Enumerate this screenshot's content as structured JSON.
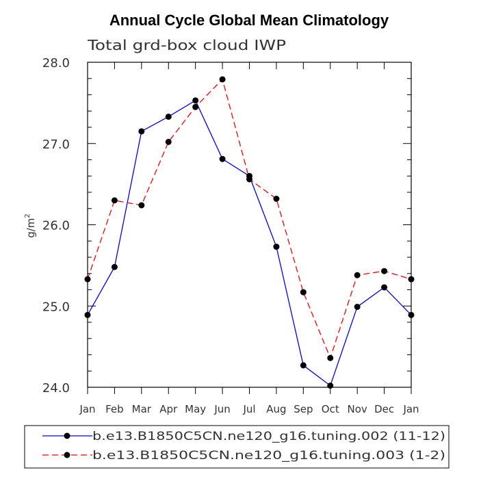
{
  "chart_data": {
    "type": "line",
    "title": "Annual Cycle Global Mean Climatology",
    "subtitle": "Total grd-box cloud IWP",
    "ylabel": "g/m",
    "ylabel_superscript": "2",
    "xlabel": "",
    "categories": [
      "Jan",
      "Feb",
      "Mar",
      "Apr",
      "May",
      "Jun",
      "Jul",
      "Aug",
      "Sep",
      "Oct",
      "Nov",
      "Dec",
      "Jan"
    ],
    "ylim": [
      24.0,
      28.0
    ],
    "yticks": [
      "24.0",
      "25.0",
      "26.0",
      "27.0",
      "28.0"
    ],
    "series": [
      {
        "name": "b.e13.B1850C5CN.ne120_g16.tuning.002 (11-12)",
        "color": "#0000ff",
        "dash": "solid",
        "values": [
          24.89,
          25.48,
          27.15,
          27.33,
          27.53,
          26.81,
          26.6,
          25.73,
          24.27,
          24.02,
          24.99,
          25.23,
          24.89
        ]
      },
      {
        "name": "b.e13.B1850C5CN.ne120_g16.tuning.003 (1-2)",
        "color": "#ff0000",
        "dash": "dashed",
        "values": [
          25.33,
          26.3,
          26.24,
          27.02,
          27.45,
          27.79,
          26.56,
          26.32,
          25.17,
          24.36,
          25.38,
          25.43,
          25.33
        ]
      }
    ],
    "grid": false,
    "legend_position": "bottom"
  }
}
